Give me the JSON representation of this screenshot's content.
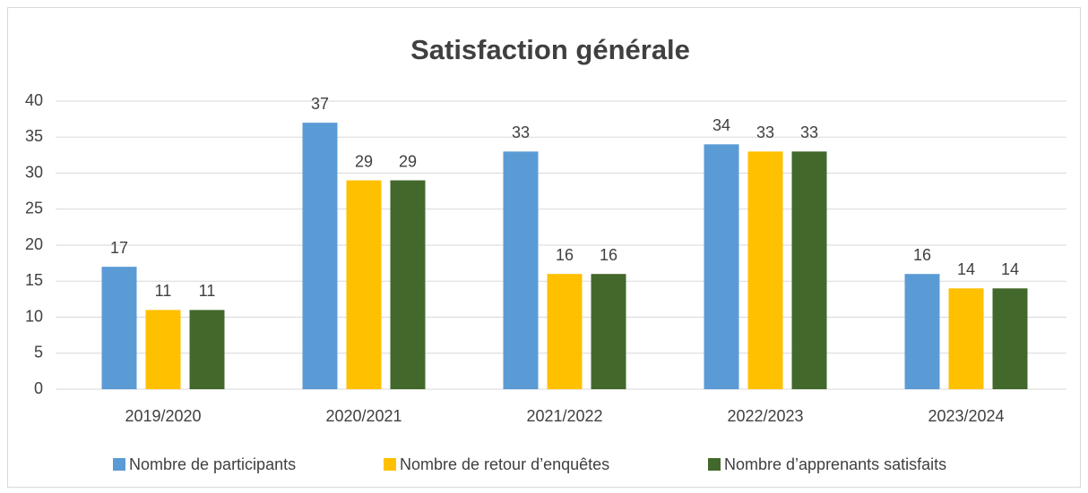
{
  "chart_data": {
    "type": "bar",
    "title": "Satisfaction générale",
    "categories": [
      "2019/2020",
      "2020/2021",
      "2021/2022",
      "2022/2023",
      "2023/2024"
    ],
    "series": [
      {
        "name": "Nombre de participants",
        "color": "#5b9bd5",
        "values": [
          17,
          37,
          33,
          34,
          16
        ]
      },
      {
        "name": "Nombre de retour d’enquêtes",
        "color": "#ffc000",
        "values": [
          11,
          29,
          16,
          33,
          14
        ]
      },
      {
        "name": "Nombre d’apprenants satisfaits",
        "color": "#43682b",
        "values": [
          11,
          29,
          16,
          33,
          14
        ]
      }
    ],
    "ylim": [
      0,
      40
    ],
    "yticks": [
      0,
      5,
      10,
      15,
      20,
      25,
      30,
      35,
      40
    ],
    "grid": true,
    "legend": "bottom"
  }
}
